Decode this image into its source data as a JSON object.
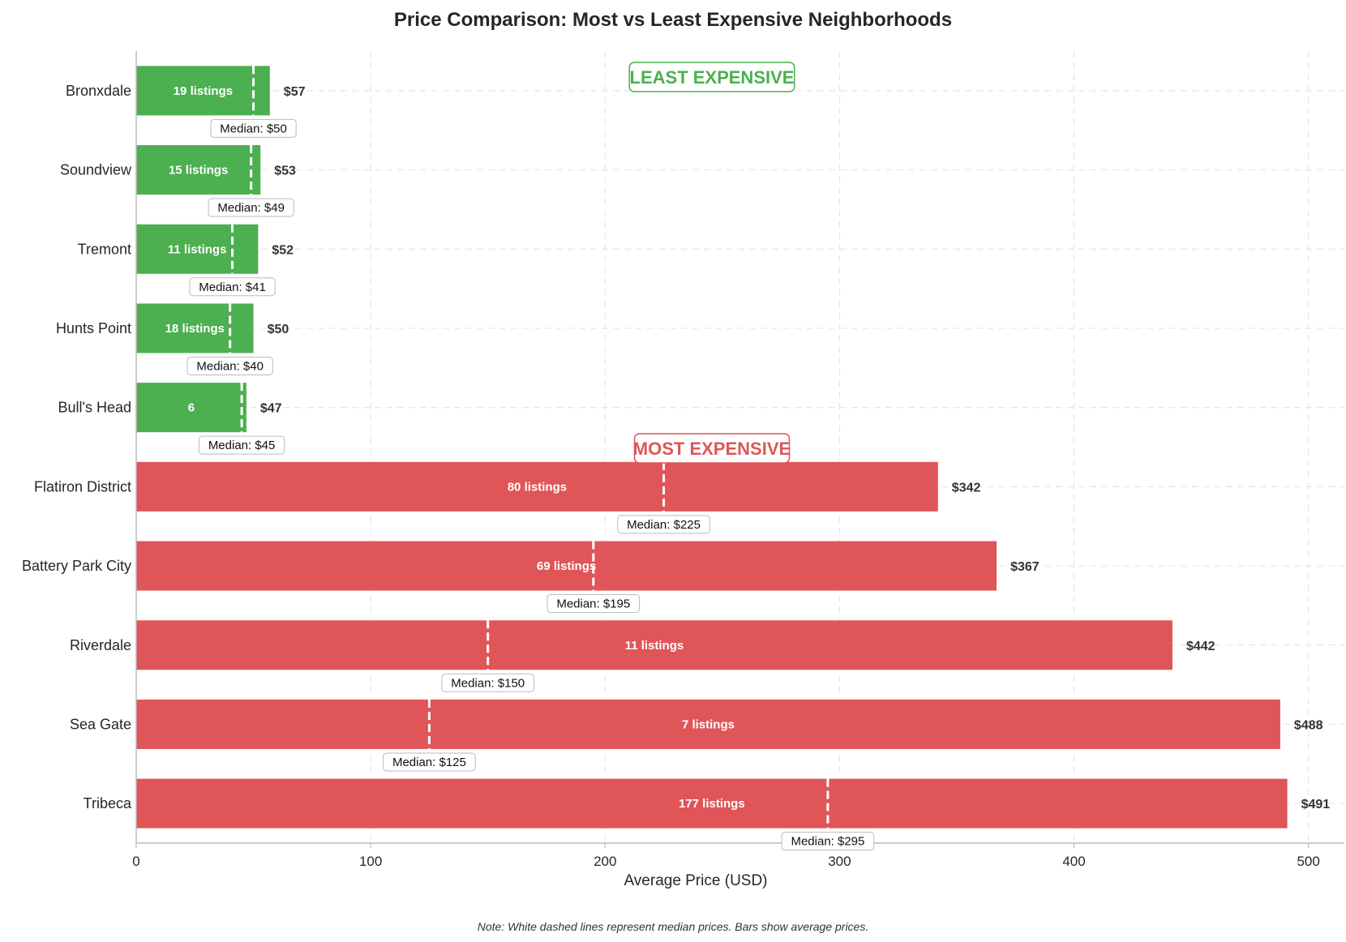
{
  "chart_data": {
    "type": "bar",
    "orientation": "horizontal",
    "title": "Price Comparison: Most vs Least Expensive Neighborhoods",
    "xlabel": "Average Price (USD)",
    "ylabel": "",
    "xlim": [
      0,
      515
    ],
    "xticks": [
      0,
      100,
      200,
      300,
      400,
      500
    ],
    "grid": true,
    "note": "Note: White dashed lines represent median prices. Bars show average prices.",
    "colors": {
      "least": "#4caf50",
      "most": "#e05558"
    },
    "groups": [
      {
        "label": "LEAST EXPENSIVE",
        "color": "#4caf50"
      },
      {
        "label": "MOST EXPENSIVE",
        "color": "#e05558"
      }
    ],
    "median_prefix": "Median: $",
    "listings_suffix": " listings",
    "categories": [
      {
        "name": "Bronxdale",
        "group": "least",
        "average": 57,
        "median": 50,
        "listings": 19,
        "listings_text": "19 listings"
      },
      {
        "name": "Soundview",
        "group": "least",
        "average": 53,
        "median": 49,
        "listings": 15,
        "listings_text": "15 listings"
      },
      {
        "name": "Tremont",
        "group": "least",
        "average": 52,
        "median": 41,
        "listings": 11,
        "listings_text": "11 listings"
      },
      {
        "name": "Hunts Point",
        "group": "least",
        "average": 50,
        "median": 40,
        "listings": 18,
        "listings_text": "18 listings"
      },
      {
        "name": "Bull's Head",
        "group": "least",
        "average": 47,
        "median": 45,
        "listings": 6,
        "listings_text": "6"
      },
      {
        "name": "Flatiron District",
        "group": "most",
        "average": 342,
        "median": 225,
        "listings": 80,
        "listings_text": "80 listings"
      },
      {
        "name": "Battery Park City",
        "group": "most",
        "average": 367,
        "median": 195,
        "listings": 69,
        "listings_text": "69 listings"
      },
      {
        "name": "Riverdale",
        "group": "most",
        "average": 442,
        "median": 150,
        "listings": 11,
        "listings_text": "11 listings"
      },
      {
        "name": "Sea Gate",
        "group": "most",
        "average": 488,
        "median": 125,
        "listings": 7,
        "listings_text": "7 listings"
      },
      {
        "name": "Tribeca",
        "group": "most",
        "average": 491,
        "median": 295,
        "listings": 177,
        "listings_text": "177 listings"
      }
    ]
  }
}
